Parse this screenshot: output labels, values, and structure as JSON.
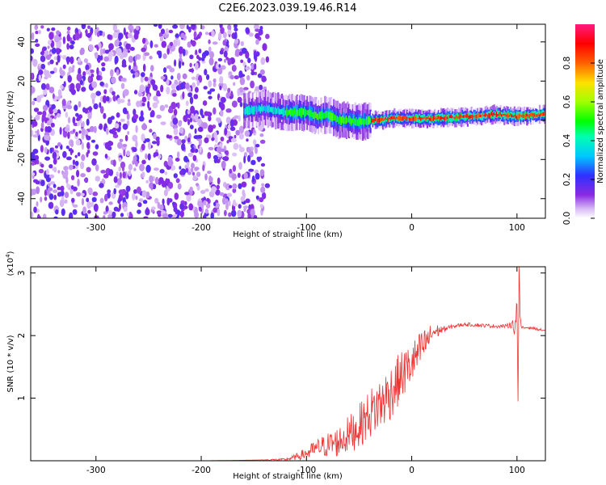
{
  "figure": {
    "title": "C2E6.2023.039.19.46.R14"
  },
  "chart_data": [
    {
      "type": "heatmap",
      "xlabel": "Height of straight line (km)",
      "ylabel": "Frequency (Hz)",
      "xlim": [
        -362,
        127
      ],
      "ylim": [
        -50,
        49
      ],
      "xticks": [
        -300,
        -200,
        -100,
        0,
        100
      ],
      "yticks": [
        -40,
        -20,
        0,
        20,
        40
      ],
      "colorbar": {
        "label": "Normalized spectral amplitude",
        "range": [
          0.0,
          1.0
        ],
        "ticks": [
          0.0,
          0.2,
          0.4,
          0.6,
          0.8
        ],
        "colormap": "rainbow (white-violet-blue-cyan-green-yellow-orange-red-pink)"
      },
      "regions": [
        {
          "desc": "broadband noise",
          "x_range": [
            -362,
            -137
          ],
          "freq_range": [
            -50,
            49
          ],
          "amplitude": 0.15
        },
        {
          "desc": "carrier band",
          "x_range": [
            -160,
            127
          ],
          "freq_center": [
            [
              -160,
              5
            ],
            [
              -140,
              6
            ],
            [
              -120,
              4
            ],
            [
              -100,
              4
            ],
            [
              -90,
              2
            ],
            [
              -80,
              3
            ],
            [
              -70,
              0
            ],
            [
              -60,
              0
            ],
            [
              -50,
              -1
            ],
            [
              -40,
              0
            ],
            [
              -30,
              0
            ],
            [
              -20,
              1
            ],
            [
              -10,
              1
            ],
            [
              0,
              1
            ],
            [
              20,
              1
            ],
            [
              40,
              1.5
            ],
            [
              60,
              2
            ],
            [
              80,
              3
            ],
            [
              100,
              2
            ],
            [
              127,
              3
            ]
          ],
          "peak_amplitude": 1.0
        }
      ]
    },
    {
      "type": "line",
      "xlabel": "Height of straight line (km)",
      "ylabel": "SNR (10 * v/v)",
      "yscale_label": "(x10",
      "yscale_exp": "4",
      "yscale_close": ")",
      "xlim": [
        -362,
        127
      ],
      "ylim": [
        0,
        3.1
      ],
      "xticks": [
        -300,
        -200,
        -100,
        0,
        100
      ],
      "yticks": [
        1,
        2,
        3
      ],
      "color": "#ee3333",
      "series": [
        {
          "x": [
            -362,
            -300,
            -250,
            -200,
            -150,
            -120,
            -110,
            -100,
            -90,
            -80,
            -70,
            -60,
            -50,
            -40,
            -30,
            -20,
            -10,
            0,
            10,
            20,
            30,
            40,
            50,
            60,
            70,
            80,
            90,
            95,
            98,
            100,
            101,
            102,
            103,
            104,
            105,
            110,
            115,
            120,
            127
          ],
          "y": [
            0.0,
            0.0,
            0.0,
            0.0,
            0.01,
            0.02,
            0.06,
            0.12,
            0.2,
            0.25,
            0.3,
            0.42,
            0.55,
            0.75,
            0.9,
            1.1,
            1.35,
            1.55,
            1.8,
            2.05,
            2.1,
            2.15,
            2.18,
            2.17,
            2.16,
            2.15,
            2.15,
            2.2,
            2.1,
            2.5,
            0.95,
            3.1,
            2.3,
            2.15,
            2.12,
            2.13,
            2.12,
            2.1,
            2.08
          ],
          "noise_amplitude": [
            0.0,
            0.0,
            0.0,
            0.0,
            0.0,
            0.02,
            0.05,
            0.1,
            0.15,
            0.2,
            0.25,
            0.3,
            0.35,
            0.4,
            0.45,
            0.45,
            0.4,
            0.35,
            0.3,
            0.15,
            0.05,
            0.03,
            0.03,
            0.03,
            0.03,
            0.03,
            0.03,
            0.08,
            0.1,
            0.2,
            0.0,
            0.0,
            0.05,
            0.03,
            0.03,
            0.02,
            0.02,
            0.02,
            0.02
          ]
        }
      ]
    }
  ]
}
